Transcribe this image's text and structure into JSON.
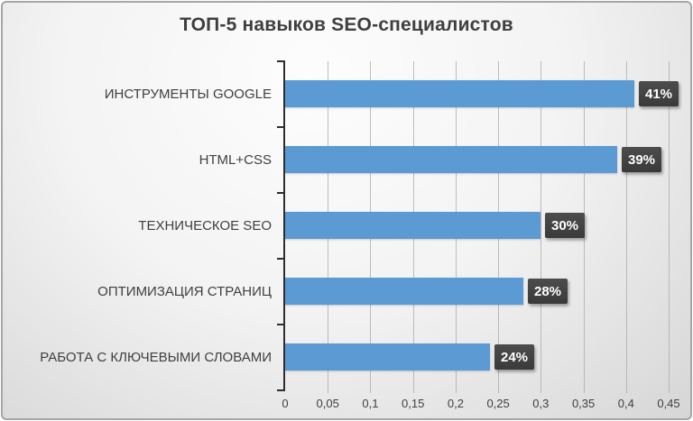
{
  "chart_data": {
    "type": "bar",
    "orientation": "horizontal",
    "title": "ТОП-5 навыков SEO-специалистов",
    "categories": [
      "ИНСТРУМЕНТЫ GOOGLE",
      "HTML+CSS",
      "ТЕХНИЧЕСКОЕ SEO",
      "ОПТИМИЗАЦИЯ СТРАНИЦ",
      "РАБОТА С КЛЮЧЕВЫМИ СЛОВАМИ"
    ],
    "values": [
      0.41,
      0.39,
      0.3,
      0.28,
      0.24
    ],
    "value_labels": [
      "41%",
      "39%",
      "30%",
      "28%",
      "24%"
    ],
    "x_tick_labels": [
      "0",
      "0,05",
      "0,1",
      "0,15",
      "0,2",
      "0,25",
      "0,3",
      "0,35",
      "0,4",
      "0,45"
    ],
    "x_tick_values": [
      0,
      0.05,
      0.1,
      0.15,
      0.2,
      0.25,
      0.3,
      0.35,
      0.4,
      0.45
    ],
    "xlim": [
      0,
      0.45
    ],
    "grid": "vertical",
    "legend": "none",
    "xlabel": "",
    "ylabel": "",
    "colors": {
      "bar": "#5b9ad2",
      "value_label_bg": "#3f3f3f",
      "value_label_text": "#ffffff",
      "axis": "#2e2e2e",
      "gridline": "#a9a9a9",
      "text": "#3f3f3f",
      "background_light": "#fdfdfd",
      "background_dark": "#d6d6d6"
    }
  }
}
